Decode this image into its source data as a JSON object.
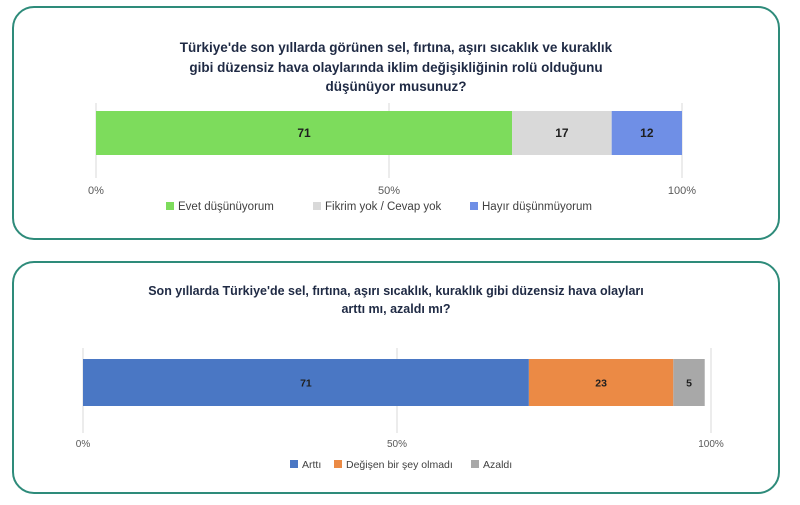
{
  "chart_data": [
    {
      "type": "bar",
      "orientation": "horizontal-stacked",
      "title_lines": [
        "Türkiye'de son yıllarda görünen sel, fırtına, aşırı sıcaklık ve kuraklık",
        "gibi düzensiz hava olaylarında iklim değişikliğinin rolü olduğunu",
        "düşünüyor musunuz?"
      ],
      "xlim": [
        0,
        100
      ],
      "ticks": [
        "0%",
        "50%",
        "100%"
      ],
      "grid": true,
      "legend_position": "bottom",
      "series": [
        {
          "name": "Evet düşünüyorum",
          "values": [
            71
          ],
          "label": "71",
          "color": "#7ddc5c"
        },
        {
          "name": "Fikrim yok / Cevap yok",
          "values": [
            17
          ],
          "label": "17",
          "color": "#d9d9d9"
        },
        {
          "name": "Hayır düşünmüyorum",
          "values": [
            12
          ],
          "label": "12",
          "color": "#6f8fe6"
        }
      ]
    },
    {
      "type": "bar",
      "orientation": "horizontal-stacked",
      "title_lines": [
        "Son yıllarda Türkiye'de sel, fırtına, aşırı sıcaklık, kuraklık gibi düzensiz hava olayları",
        "arttı mı, azaldı mı?"
      ],
      "xlim": [
        0,
        100
      ],
      "ticks": [
        "0%",
        "50%",
        "100%"
      ],
      "grid": true,
      "legend_position": "bottom",
      "series": [
        {
          "name": "Arttı",
          "values": [
            71
          ],
          "label": "71",
          "color": "#4a77c4"
        },
        {
          "name": "Değişen bir şey olmadı",
          "values": [
            23
          ],
          "label": "23",
          "color": "#eb8a45"
        },
        {
          "name": "Azaldı",
          "values": [
            5
          ],
          "label": "5",
          "color": "#a8a8a8"
        }
      ]
    }
  ]
}
